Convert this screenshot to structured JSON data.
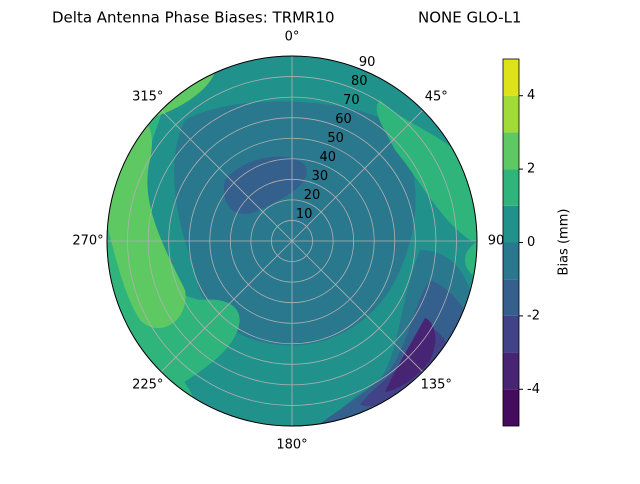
{
  "chart_data": {
    "type": "polar_contour",
    "title": "Delta Antenna Phase Biases: TRMR10",
    "title_right": "NONE GLO-L1",
    "rlim": [
      0,
      90
    ],
    "rticks": [
      10,
      20,
      30,
      40,
      50,
      60,
      70,
      80,
      90
    ],
    "thetaticks": [
      {
        "value": 0,
        "label": "0°"
      },
      {
        "value": 45,
        "label": "45°"
      },
      {
        "value": 90,
        "label": "90"
      },
      {
        "value": 135,
        "label": "135°"
      },
      {
        "value": 180,
        "label": "180°"
      },
      {
        "value": 225,
        "label": "225°"
      },
      {
        "value": 270,
        "label": "270°"
      },
      {
        "value": 315,
        "label": "315°"
      }
    ],
    "grid": true,
    "colorbar": {
      "label": "Bias (mm)",
      "levels": [
        -5,
        -4,
        -3,
        -2,
        -1,
        0,
        1,
        2,
        3,
        4,
        5
      ],
      "ticks": [
        -4,
        -2,
        0,
        2,
        4
      ],
      "colors": [
        "#450b5e",
        "#482475",
        "#414287",
        "#355f8d",
        "#2a788e",
        "#21918c",
        "#2fb47c",
        "#5ec962",
        "#a2da37",
        "#dde318"
      ]
    }
  }
}
